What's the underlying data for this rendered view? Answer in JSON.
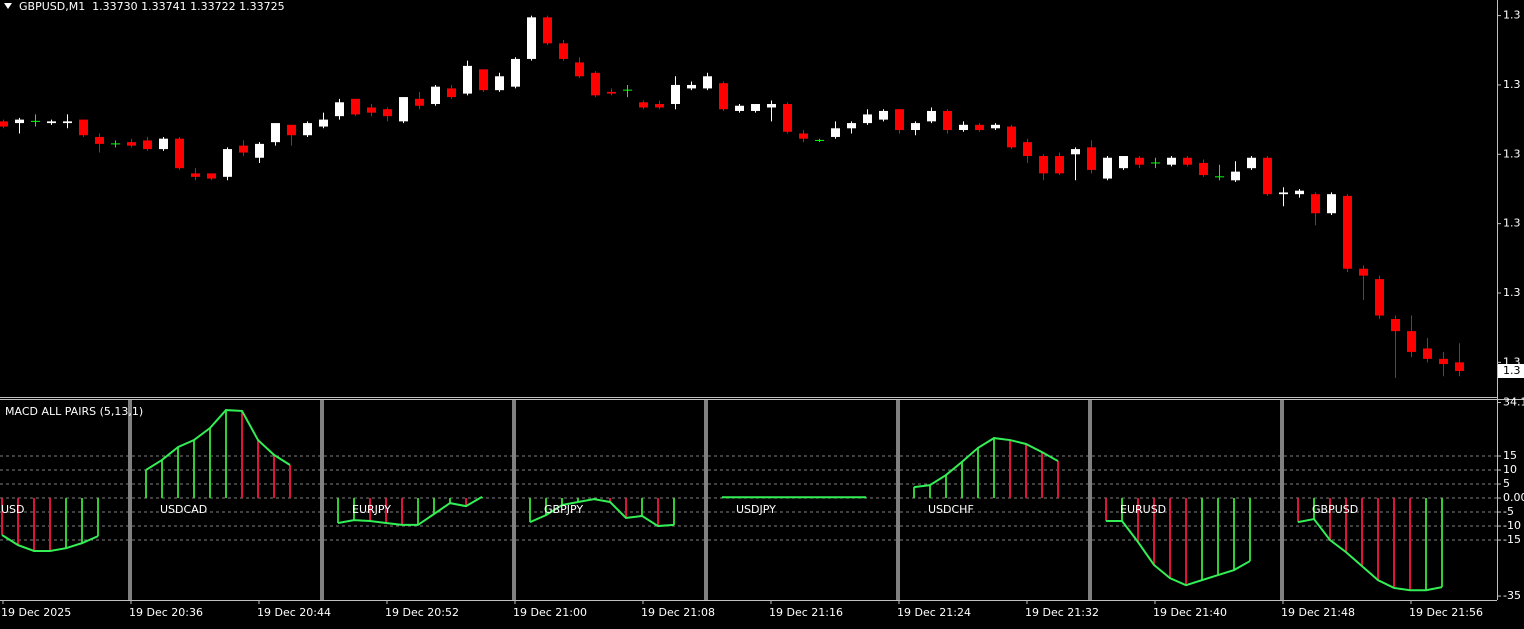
{
  "chart_data": [
    {
      "type": "candlestick",
      "title": "GBPUSD,M1  1.33730 1.33741 1.33722 1.33725",
      "categories": [
        "19 Dec 2025",
        null,
        null,
        null,
        null,
        null,
        null,
        null,
        "19 Dec 20:36",
        null,
        null,
        null,
        null,
        null,
        null,
        null,
        "19 Dec 20:44",
        null,
        null,
        null,
        null,
        null,
        null,
        null,
        "19 Dec 20:52",
        null,
        null,
        null,
        null,
        null,
        null,
        null,
        "19 Dec 21:00",
        null,
        null,
        null,
        null,
        null,
        null,
        null,
        "19 Dec 21:08",
        null,
        null,
        null,
        null,
        null,
        null,
        null,
        "19 Dec 21:16",
        null,
        null,
        null,
        null,
        null,
        null,
        null,
        "19 Dec 21:24",
        null,
        null,
        null,
        null,
        null,
        null,
        null,
        "19 Dec 21:32",
        null,
        null,
        null,
        null,
        null,
        null,
        null,
        "19 Dec 21:40",
        null,
        null,
        null,
        null,
        null,
        null,
        null,
        "19 Dec 21:48",
        null,
        null,
        null,
        null,
        null,
        null,
        null,
        "19 Dec 21:56",
        null,
        null,
        null
      ],
      "open": [
        1.33869,
        1.33868,
        1.33869,
        1.33868,
        1.33868,
        1.3387,
        1.3386,
        1.33856,
        1.33857,
        1.33858,
        1.33853,
        1.33859,
        1.33839,
        1.33839,
        1.33837,
        1.33855,
        1.33848,
        1.33857,
        1.33867,
        1.33861,
        1.33866,
        1.33872,
        1.33882,
        1.33877,
        1.33876,
        1.33869,
        1.33882,
        1.33879,
        1.33888,
        1.33885,
        1.33899,
        1.33887,
        1.33889,
        1.33905,
        1.33929,
        1.33914,
        1.33903,
        1.33897,
        1.33886,
        1.33887,
        1.3388,
        1.33879,
        1.33879,
        1.33888,
        1.33888,
        1.33891,
        1.33875,
        1.33875,
        1.33877,
        1.33879,
        1.33862,
        1.33858,
        1.3386,
        1.33865,
        1.33868,
        1.3387,
        1.33876,
        1.33864,
        1.33869,
        1.33875,
        1.33864,
        1.33867,
        1.33865,
        1.33866,
        1.33857,
        1.33849,
        1.33849,
        1.3385,
        1.33854,
        1.33836,
        1.33842,
        1.33848,
        1.33845,
        1.33844,
        1.33848,
        1.33845,
        1.33837,
        1.33835,
        1.33842,
        1.33848,
        1.33827,
        1.33827,
        1.33827,
        1.33816,
        1.33826,
        1.33784,
        1.33778,
        1.33755,
        1.33748,
        1.33738,
        1.33732,
        1.3373
      ],
      "high": [
        1.3387,
        1.33871,
        1.33873,
        1.3387,
        1.33873,
        1.3387,
        1.33862,
        1.33858,
        1.33859,
        1.3386,
        1.3386,
        1.3386,
        1.33842,
        1.33839,
        1.33854,
        1.33858,
        1.33857,
        1.33868,
        1.33867,
        1.33869,
        1.33874,
        1.33882,
        1.33882,
        1.33879,
        1.33877,
        1.33883,
        1.33886,
        1.3389,
        1.3389,
        1.33904,
        1.33899,
        1.33897,
        1.33906,
        1.3393,
        1.3393,
        1.33916,
        1.33906,
        1.33898,
        1.33888,
        1.3389,
        1.33881,
        1.33881,
        1.33895,
        1.33892,
        1.33897,
        1.33892,
        1.33879,
        1.33879,
        1.33881,
        1.3388,
        1.33864,
        1.33859,
        1.33869,
        1.33869,
        1.33876,
        1.33876,
        1.33876,
        1.33869,
        1.33877,
        1.33876,
        1.33869,
        1.33868,
        1.33868,
        1.33867,
        1.33859,
        1.3385,
        1.33851,
        1.33854,
        1.33858,
        1.33849,
        1.33849,
        1.33849,
        1.33848,
        1.33849,
        1.33849,
        1.33847,
        1.33844,
        1.33846,
        1.33849,
        1.33849,
        1.33831,
        1.3383,
        1.33828,
        1.33828,
        1.33827,
        1.33786,
        1.3378,
        1.33757,
        1.33757,
        1.33744,
        1.33736,
        1.33741
      ],
      "low": [
        1.33865,
        1.33862,
        1.33866,
        1.33867,
        1.33865,
        1.3386,
        1.33851,
        1.33854,
        1.33854,
        1.33852,
        1.33852,
        1.33841,
        1.33835,
        1.33835,
        1.33835,
        1.33849,
        1.33845,
        1.33855,
        1.33855,
        1.3386,
        1.33865,
        1.3387,
        1.33872,
        1.33872,
        1.33869,
        1.33868,
        1.33876,
        1.33878,
        1.33882,
        1.33884,
        1.33886,
        1.33886,
        1.33888,
        1.33904,
        1.33913,
        1.33904,
        1.33894,
        1.33883,
        1.33884,
        1.33883,
        1.33876,
        1.33876,
        1.33876,
        1.33887,
        1.33887,
        1.33875,
        1.33874,
        1.33874,
        1.33869,
        1.33862,
        1.33857,
        1.33857,
        1.33859,
        1.33862,
        1.33867,
        1.33869,
        1.33862,
        1.33861,
        1.33868,
        1.33862,
        1.33863,
        1.33863,
        1.33864,
        1.33853,
        1.33845,
        1.33835,
        1.33838,
        1.33835,
        1.33839,
        1.33835,
        1.33841,
        1.33842,
        1.33842,
        1.33843,
        1.33843,
        1.33837,
        1.33835,
        1.33834,
        1.33841,
        1.33826,
        1.3382,
        1.33825,
        1.33809,
        1.33815,
        1.33782,
        1.33766,
        1.33755,
        1.33721,
        1.33733,
        1.3373,
        1.33722,
        1.33722
      ],
      "close": [
        1.33866,
        1.3387,
        1.33869,
        1.33869,
        1.33869,
        1.33861,
        1.33856,
        1.33856,
        1.33855,
        1.33853,
        1.33859,
        1.33842,
        1.33837,
        1.33836,
        1.33853,
        1.33851,
        1.33856,
        1.33868,
        1.33861,
        1.33868,
        1.3387,
        1.3388,
        1.33873,
        1.33874,
        1.33872,
        1.33883,
        1.33878,
        1.33889,
        1.33883,
        1.33901,
        1.33887,
        1.33895,
        1.33905,
        1.33929,
        1.33914,
        1.33905,
        1.33895,
        1.33884,
        1.33885,
        1.33887,
        1.33877,
        1.33877,
        1.3389,
        1.3389,
        1.33895,
        1.33876,
        1.33878,
        1.33879,
        1.33879,
        1.33863,
        1.33859,
        1.33858,
        1.33865,
        1.33868,
        1.33873,
        1.33875,
        1.33864,
        1.33868,
        1.33875,
        1.33864,
        1.33867,
        1.33864,
        1.33867,
        1.33854,
        1.33849,
        1.33839,
        1.33839,
        1.33853,
        1.33841,
        1.33848,
        1.33849,
        1.33844,
        1.33845,
        1.33848,
        1.33844,
        1.33838,
        1.33837,
        1.3384,
        1.33848,
        1.33827,
        1.33828,
        1.33829,
        1.33816,
        1.33827,
        1.33784,
        1.3378,
        1.33757,
        1.33748,
        1.33736,
        1.33732,
        1.33729,
        1.33725
      ],
      "up_color": "#ffffff",
      "down_color": "#ff0000",
      "doji_color": "#00ff00",
      "ylim": [
        1.3371,
        1.33939
      ],
      "yticks": [
        {
          "value": 1.3393,
          "label": "1.3"
        },
        {
          "value": 1.3389,
          "label": "1.3"
        },
        {
          "value": 1.3385,
          "label": "1.3"
        },
        {
          "value": 1.3381,
          "label": "1.3"
        },
        {
          "value": 1.3377,
          "label": "1.3"
        },
        {
          "value": 1.3373,
          "label": "1.3"
        }
      ],
      "current_price": {
        "value": 1.33725,
        "label": "1.3"
      }
    },
    {
      "type": "bar",
      "title": "MACD ALL PAIRS (5,13,1)",
      "series": [
        {
          "name": "USD",
          "values": [
            -13.2,
            -16.8,
            -18.9,
            -18.9,
            -17.9,
            -16.1,
            -13.6
          ],
          "colors": [
            "#dc143c",
            "#dc143c",
            "#dc143c",
            "#dc143c",
            "#32cd32",
            "#32cd32",
            "#32cd32"
          ]
        },
        {
          "name": "USDCAD",
          "values": [
            10,
            13.6,
            18.2,
            20.7,
            25,
            31.4,
            31.1,
            20.7,
            15.4,
            11.8
          ],
          "colors": [
            "#32cd32",
            "#32cd32",
            "#32cd32",
            "#32cd32",
            "#32cd32",
            "#32cd32",
            "#dc143c",
            "#dc143c",
            "#dc143c",
            "#dc143c"
          ]
        },
        {
          "name": "EURJPY",
          "values": [
            -8.9,
            -7.9,
            -8.2,
            -8.9,
            -9.6,
            -9.6,
            -5.7,
            -1.8,
            -2.9,
            0.4
          ],
          "colors": [
            "#32cd32",
            "#32cd32",
            "#dc143c",
            "#dc143c",
            "#dc143c",
            "#32cd32",
            "#32cd32",
            "#32cd32",
            "#dc143c",
            "#32cd32"
          ]
        },
        {
          "name": "GBPJPY",
          "values": [
            -8.6,
            -6.1,
            -2.5,
            -1.4,
            -0.4,
            -1.4,
            -7.1,
            -6.4,
            -10,
            -9.6
          ],
          "colors": [
            "#32cd32",
            "#32cd32",
            "#32cd32",
            "#32cd32",
            "#32cd32",
            "#dc143c",
            "#dc143c",
            "#32cd32",
            "#dc143c",
            "#32cd32"
          ]
        },
        {
          "name": "USDJPY",
          "values": [
            0.3,
            0.3,
            0.3,
            0.3,
            0.3,
            0.3,
            0.3,
            0.3,
            0.3,
            0.3
          ],
          "colors": [
            "#32cd32",
            "#32cd32",
            "#32cd32",
            "#32cd32",
            "#32cd32",
            "#32cd32",
            "#32cd32",
            "#32cd32",
            "#32cd32",
            "#32cd32"
          ]
        },
        {
          "name": "USDCHF",
          "values": [
            3.9,
            4.6,
            8.2,
            12.9,
            17.9,
            21.4,
            20.7,
            19.3,
            16.4,
            13.2
          ],
          "colors": [
            "#32cd32",
            "#32cd32",
            "#32cd32",
            "#32cd32",
            "#32cd32",
            "#32cd32",
            "#dc143c",
            "#dc143c",
            "#dc143c",
            "#dc143c"
          ]
        },
        {
          "name": "EURUSD",
          "values": [
            -8.2,
            -8.2,
            -15.7,
            -23.9,
            -28.6,
            -31.1,
            -29.3,
            -27.5,
            -25.7,
            -22.5
          ],
          "colors": [
            "#dc143c",
            "#32cd32",
            "#dc143c",
            "#dc143c",
            "#dc143c",
            "#dc143c",
            "#32cd32",
            "#32cd32",
            "#32cd32",
            "#32cd32"
          ]
        },
        {
          "name": "GBPUSD",
          "values": [
            -8.6,
            -7.5,
            -15,
            -19.3,
            -24.3,
            -29.3,
            -32.1,
            -32.9,
            -32.9,
            -31.8
          ],
          "colors": [
            "#dc143c",
            "#32cd32",
            "#dc143c",
            "#dc143c",
            "#dc143c",
            "#dc143c",
            "#dc143c",
            "#dc143c",
            "#32cd32",
            "#32cd32"
          ]
        }
      ],
      "line_color": "#33ee55",
      "ylim": [
        -36.4,
        35
      ],
      "yticks": [
        34.1,
        15,
        10,
        5,
        {
          "value": 0,
          "label": "0.00"
        },
        -5,
        -10,
        -15,
        -35
      ],
      "levels": [
        15,
        10,
        5,
        0,
        -5,
        -10,
        -15
      ]
    }
  ]
}
